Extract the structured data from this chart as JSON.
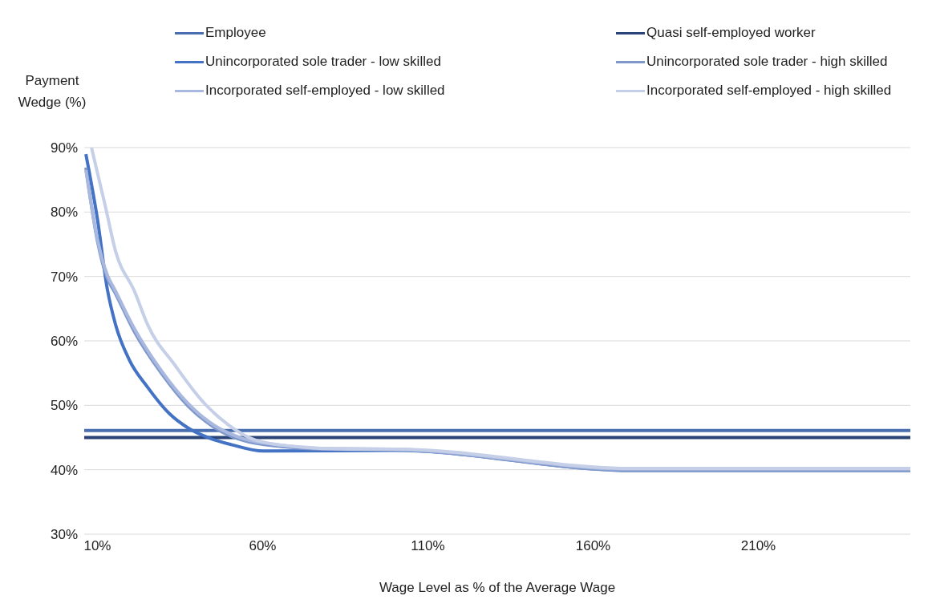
{
  "chart_data": {
    "type": "line",
    "xlabel": "Wage Level as % of the Average Wage",
    "ylabel": "Payment Wedge (%)",
    "xlim": [
      6,
      256
    ],
    "xticks": [
      {
        "value": 10,
        "label": "10%"
      },
      {
        "value": 60,
        "label": "60%"
      },
      {
        "value": 110,
        "label": "110%"
      },
      {
        "value": 160,
        "label": "160%"
      },
      {
        "value": 210,
        "label": "210%"
      }
    ],
    "ylim": [
      30,
      90
    ],
    "yticks": [
      {
        "value": 30,
        "label": "30%"
      },
      {
        "value": 40,
        "label": "40%"
      },
      {
        "value": 50,
        "label": "50%"
      },
      {
        "value": 60,
        "label": "60%"
      },
      {
        "value": 70,
        "label": "70%"
      },
      {
        "value": 80,
        "label": "80%"
      },
      {
        "value": 90,
        "label": "90%"
      }
    ],
    "grid": "y",
    "legend": "top",
    "marker": "none",
    "line_style": "solid",
    "series": [
      {
        "name": "Employee",
        "color": "#4a6fb0",
        "x": [
          6,
          256
        ],
        "values": [
          46.1,
          46.1
        ]
      },
      {
        "name": "Quasi self-employed worker",
        "color": "#2a4478",
        "x": [
          6,
          256
        ],
        "values": [
          45.0,
          45.0
        ]
      },
      {
        "name": "Unincorporated sole trader - low skilled",
        "color": "#4472c4",
        "x": [
          6.5,
          10,
          13,
          15.5,
          19.6,
          25.2,
          31.8,
          37.4,
          44,
          50.5,
          60.2,
          100,
          172,
          256
        ],
        "values": [
          89.0,
          78.9,
          68,
          62.5,
          57.1,
          52.8,
          48.7,
          46.5,
          44.9,
          43.9,
          42.9,
          43.0,
          39.9,
          39.9
        ]
      },
      {
        "name": "Unincorporated sole trader - high skilled",
        "color": "#7f98cc",
        "x": [
          6.5,
          10,
          13,
          15.2,
          21.3,
          29.3,
          37.4,
          45.6,
          53.7,
          65.8,
          78,
          100,
          172,
          256
        ],
        "values": [
          86.9,
          75.5,
          69.7,
          67.6,
          61.3,
          55.0,
          49.9,
          46.5,
          44.6,
          43.6,
          43.2,
          43.1,
          39.9,
          39.9
        ]
      },
      {
        "name": "Incorporated self-employed - low skilled",
        "color": "#a9b8de",
        "x": [
          6.5,
          10,
          13,
          15.2,
          21.3,
          29.3,
          37.4,
          45.6,
          53.7,
          65.8,
          78,
          100,
          172,
          256
        ],
        "values": [
          86.5,
          75.8,
          70.2,
          68.0,
          61.8,
          55.4,
          50.3,
          46.8,
          44.9,
          43.8,
          43.3,
          43.2,
          40.1,
          40.1
        ]
      },
      {
        "name": "Incorporated self-employed - high skilled",
        "color": "#c5cfe8",
        "x": [
          8.2,
          12.3,
          15.5,
          21.3,
          25.2,
          33.5,
          41.5,
          49.5,
          57.8,
          70,
          86,
          100,
          172,
          256
        ],
        "values": [
          90,
          81.1,
          73.9,
          67.6,
          62.5,
          56.2,
          50.8,
          47.0,
          44.6,
          43.6,
          43.2,
          43.2,
          40.2,
          40.2
        ]
      }
    ]
  }
}
